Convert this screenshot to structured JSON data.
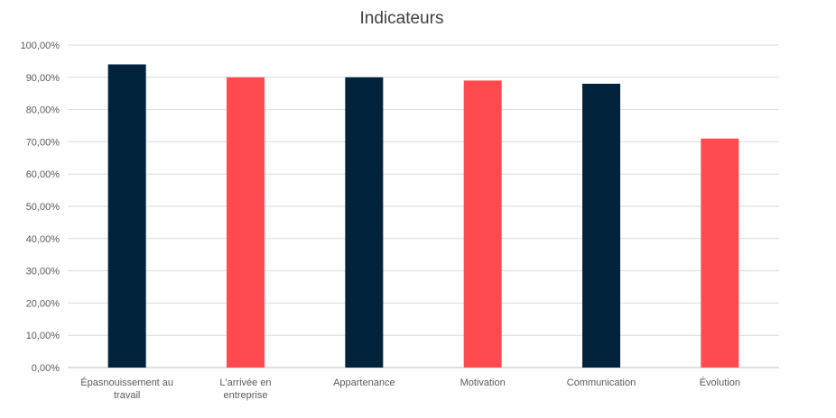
{
  "chart_data": {
    "type": "bar",
    "title": "Indicateurs",
    "xlabel": "",
    "ylabel": "",
    "ylim": [
      0,
      100
    ],
    "y_tick_values": [
      0,
      10,
      20,
      30,
      40,
      50,
      60,
      70,
      80,
      90,
      100
    ],
    "y_tick_labels": [
      "0,00%",
      "10,00%",
      "20,00%",
      "30,00%",
      "40,00%",
      "50,00%",
      "60,00%",
      "70,00%",
      "80,00%",
      "90,00%",
      "100,00%"
    ],
    "grid": true,
    "legend": "none",
    "categories": [
      "Épasnouissement au travail",
      "L'arrivée en entreprise",
      "Appartenance",
      "Motivation",
      "Communication",
      "Évolution"
    ],
    "series": [
      {
        "values": [
          94,
          90,
          90,
          89,
          88,
          71
        ],
        "colors": [
          "#00233b",
          "#ff4b4f",
          "#00233b",
          "#ff4b4f",
          "#00233b",
          "#ff4b4f"
        ]
      }
    ]
  }
}
